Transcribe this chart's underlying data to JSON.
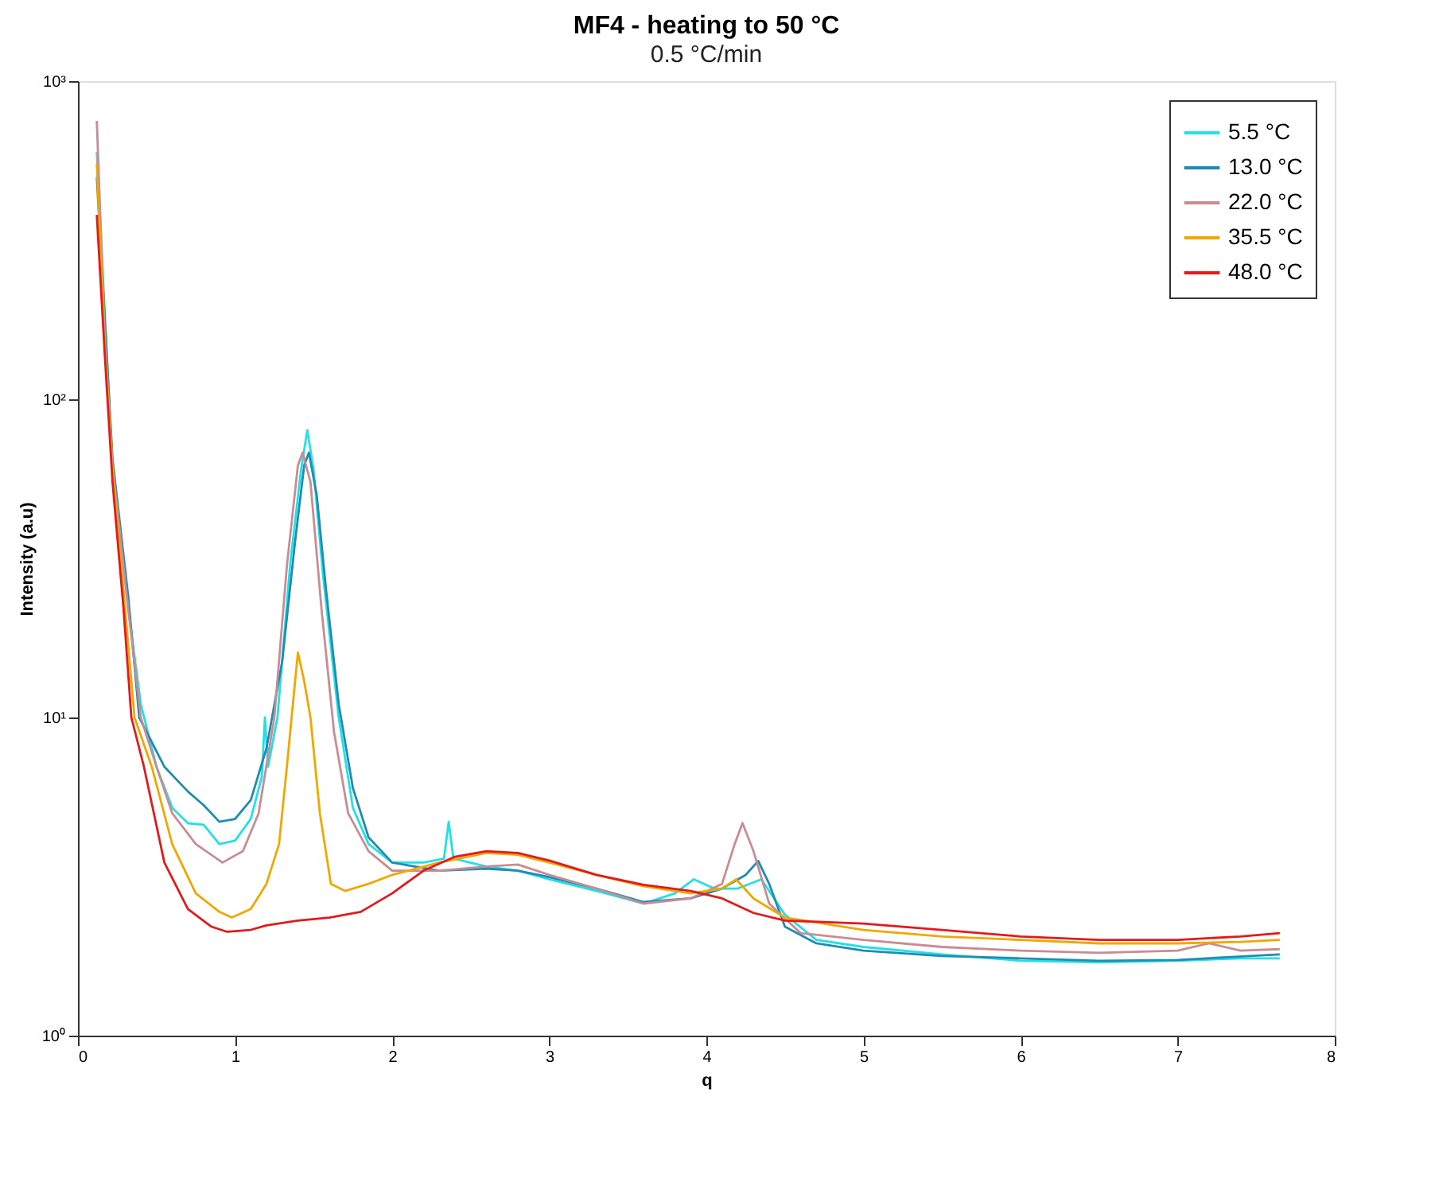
{
  "chart_data": {
    "type": "line",
    "title": "MF4 - heating to 50 °C",
    "subtitle": "0.5 °C/min",
    "xlabel": "q",
    "ylabel": "Intensity (a.u)",
    "xlim": [
      0,
      8
    ],
    "xticks": [
      0,
      1,
      2,
      3,
      4,
      5,
      6,
      7,
      8
    ],
    "ylim": [
      1,
      1000
    ],
    "yticks": [
      {
        "value": 1,
        "label": "10⁰"
      },
      {
        "value": 10,
        "label": "10¹"
      },
      {
        "value": 100,
        "label": "10²"
      },
      {
        "value": 1000,
        "label": "10³"
      }
    ],
    "log": "y",
    "grid": false,
    "legend": "top right",
    "marker": "none",
    "line_style": "solid",
    "series": [
      {
        "name": "5.5 °C",
        "color": "#22e0e6",
        "x": [
          0.12,
          0.22,
          0.32,
          0.4,
          0.5,
          0.6,
          0.7,
          0.8,
          0.9,
          1.0,
          1.1,
          1.17,
          1.19,
          1.21,
          1.27,
          1.35,
          1.42,
          1.46,
          1.5,
          1.56,
          1.66,
          1.75,
          1.85,
          2.0,
          2.2,
          2.33,
          2.36,
          2.39,
          2.6,
          2.8,
          3.0,
          3.3,
          3.6,
          3.8,
          3.92,
          4.05,
          4.2,
          4.35,
          4.5,
          4.7,
          5.0,
          5.5,
          6.0,
          6.5,
          7.0,
          7.4,
          7.65
        ],
        "values": [
          600,
          60,
          22,
          11,
          7,
          5.2,
          4.65,
          4.6,
          4.0,
          4.1,
          4.8,
          6.5,
          10,
          7,
          10,
          30,
          60,
          80,
          60,
          28,
          10,
          5.2,
          4,
          3.5,
          3.5,
          3.6,
          4.7,
          3.6,
          3.4,
          3.3,
          3.1,
          2.85,
          2.6,
          2.8,
          3.1,
          2.9,
          2.9,
          3.1,
          2.4,
          2.0,
          1.9,
          1.8,
          1.72,
          1.7,
          1.72,
          1.75,
          1.75
        ]
      },
      {
        "name": "13.0 °C",
        "color": "#1f8db3",
        "x": [
          0.12,
          0.22,
          0.32,
          0.39,
          0.55,
          0.7,
          0.8,
          0.9,
          1.0,
          1.1,
          1.2,
          1.3,
          1.38,
          1.44,
          1.47,
          1.52,
          1.58,
          1.66,
          1.75,
          1.85,
          2.0,
          2.3,
          2.6,
          2.8,
          3.0,
          3.3,
          3.6,
          3.9,
          4.1,
          4.25,
          4.33,
          4.4,
          4.5,
          4.7,
          5.0,
          5.5,
          6.0,
          6.5,
          7.0,
          7.65
        ],
        "values": [
          500,
          65,
          24,
          10,
          7,
          5.85,
          5.3,
          4.7,
          4.8,
          5.5,
          8,
          15,
          35,
          62,
          68,
          50,
          25,
          11,
          6,
          4.2,
          3.5,
          3.3,
          3.35,
          3.3,
          3.15,
          2.9,
          2.63,
          2.7,
          2.9,
          3.2,
          3.54,
          3.0,
          2.2,
          1.95,
          1.85,
          1.78,
          1.75,
          1.72,
          1.73,
          1.8
        ]
      },
      {
        "name": "22.0 °C",
        "color": "#c98c93",
        "x": [
          0.12,
          0.17,
          0.22,
          0.32,
          0.4,
          0.5,
          0.6,
          0.75,
          0.92,
          1.05,
          1.15,
          1.25,
          1.33,
          1.4,
          1.43,
          1.48,
          1.55,
          1.63,
          1.72,
          1.85,
          2.0,
          2.3,
          2.6,
          2.8,
          3.0,
          3.3,
          3.6,
          3.9,
          4.1,
          4.18,
          4.23,
          4.3,
          4.4,
          4.6,
          5.0,
          5.5,
          6.0,
          6.5,
          7.0,
          7.2,
          7.4,
          7.65
        ],
        "values": [
          750,
          160,
          62,
          22,
          10,
          7,
          5,
          4,
          3.5,
          3.8,
          5,
          10,
          30,
          62,
          68,
          55,
          22,
          9,
          5,
          3.8,
          3.3,
          3.3,
          3.4,
          3.45,
          3.2,
          2.9,
          2.6,
          2.7,
          3.0,
          4.0,
          4.66,
          3.8,
          2.6,
          2.1,
          2.0,
          1.9,
          1.85,
          1.82,
          1.85,
          1.95,
          1.85,
          1.87
        ]
      },
      {
        "name": "35.5 °C",
        "color": "#f0a800",
        "x": [
          0.12,
          0.17,
          0.22,
          0.3,
          0.36,
          0.47,
          0.6,
          0.75,
          0.9,
          0.98,
          1.1,
          1.2,
          1.28,
          1.33,
          1.36,
          1.4,
          1.44,
          1.48,
          1.54,
          1.61,
          1.7,
          1.85,
          2.0,
          2.3,
          2.6,
          2.8,
          3.0,
          3.3,
          3.6,
          3.9,
          4.1,
          4.19,
          4.3,
          4.5,
          5.0,
          5.5,
          6.0,
          6.5,
          7.0,
          7.4,
          7.65
        ],
        "values": [
          550,
          150,
          60,
          22,
          10,
          7,
          4,
          2.8,
          2.45,
          2.35,
          2.5,
          3.0,
          4,
          7,
          10,
          16,
          13,
          10,
          5,
          3,
          2.85,
          3.0,
          3.2,
          3.5,
          3.75,
          3.7,
          3.5,
          3.2,
          2.95,
          2.8,
          2.9,
          3.1,
          2.7,
          2.35,
          2.15,
          2.05,
          2.0,
          1.95,
          1.95,
          1.97,
          2.0
        ]
      },
      {
        "name": "48.0 °C",
        "color": "#e31a1c",
        "x": [
          0.12,
          0.17,
          0.22,
          0.29,
          0.34,
          0.42,
          0.55,
          0.7,
          0.85,
          0.95,
          1.1,
          1.2,
          1.4,
          1.6,
          1.8,
          2.0,
          2.2,
          2.4,
          2.6,
          2.8,
          3.0,
          3.3,
          3.6,
          3.9,
          4.1,
          4.3,
          4.5,
          5.0,
          5.5,
          6.0,
          6.5,
          7.0,
          7.4,
          7.65
        ],
        "values": [
          380,
          140,
          55,
          22,
          10,
          7,
          3.5,
          2.5,
          2.2,
          2.12,
          2.15,
          2.22,
          2.3,
          2.35,
          2.45,
          2.8,
          3.3,
          3.65,
          3.8,
          3.75,
          3.55,
          3.2,
          2.98,
          2.85,
          2.7,
          2.43,
          2.3,
          2.25,
          2.15,
          2.05,
          2.0,
          2.0,
          2.05,
          2.1
        ]
      }
    ]
  }
}
